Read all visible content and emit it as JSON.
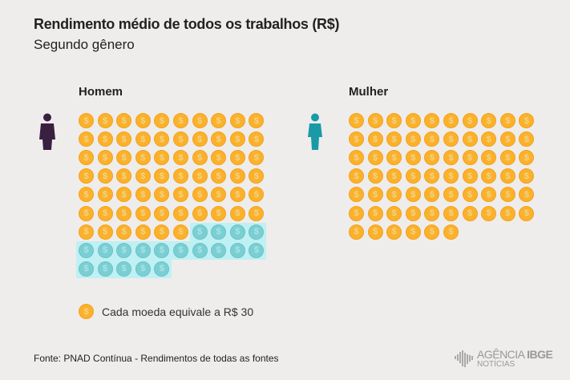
{
  "chart_data": {
    "type": "pictogram",
    "title": "Rendimento médio de todos os trabalhos (R$)",
    "subtitle": "Segundo gênero",
    "unit_value": 30,
    "legend": "Cada moeda equivale a R$ 30",
    "series": [
      {
        "name": "Homem",
        "coins": 85,
        "highlighted_coins": 19,
        "color": "#fbb12b",
        "highlight_color": "#7bcfd3",
        "icon_color": "#3a2040"
      },
      {
        "name": "Mulher",
        "coins": 66,
        "highlighted_coins": 0,
        "color": "#fbb12b",
        "icon_color": "#1a9aa6"
      }
    ]
  },
  "coin_symbol": "$",
  "source": "Fonte: PNAD Contínua - Rendimentos de todas as fontes",
  "logo": {
    "line1": "AGÊNCIA",
    "line1b": "IBGE",
    "line2": "NOTÍCIAS"
  }
}
